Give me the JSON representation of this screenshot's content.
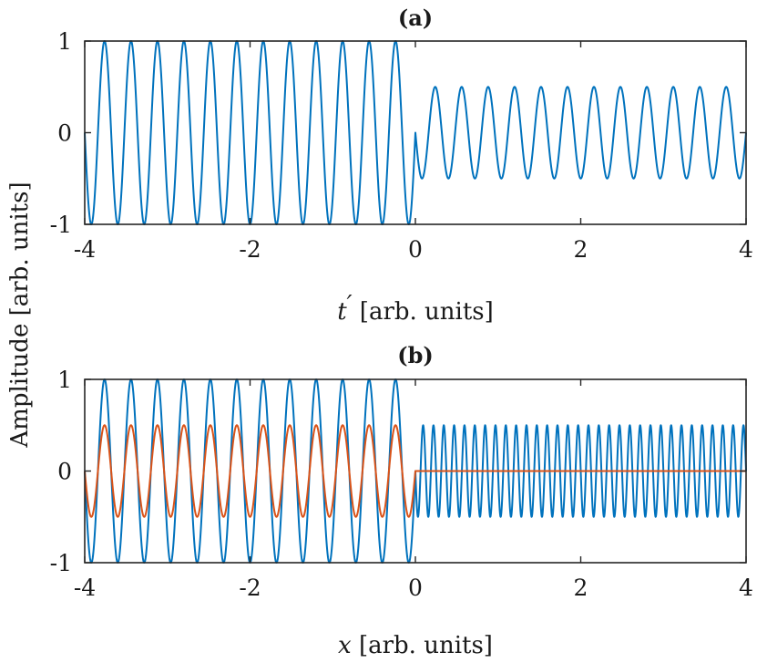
{
  "figure": {
    "ylabel": "Amplitude [arb. units]"
  },
  "chart_data": [
    {
      "type": "line",
      "title": "(a)",
      "xlabel_main": "t",
      "xlabel_prime": "′",
      "xlabel_rest": " [arb. units]",
      "xlim": [
        -4,
        4
      ],
      "ylim": [
        -1,
        1
      ],
      "xticks": [
        "-4",
        "-2",
        "0",
        "2",
        "4"
      ],
      "yticks": [
        "1",
        "0",
        "-1"
      ],
      "grid": false,
      "series": [
        {
          "color": "#0072BD",
          "segments": [
            {
              "x_range": [
                -4,
                0
              ],
              "amplitude": 1.0,
              "periods": 12.5
            },
            {
              "x_range": [
                0,
                4
              ],
              "amplitude": 0.5,
              "periods": 12.5
            }
          ]
        }
      ]
    },
    {
      "type": "line",
      "title": "(b)",
      "xlabel_main": "x",
      "xlabel_rest": " [arb. units]",
      "xlim": [
        -4,
        4
      ],
      "ylim": [
        -1,
        1
      ],
      "xticks": [
        "-4",
        "-2",
        "0",
        "2",
        "4"
      ],
      "yticks": [
        "1",
        "0",
        "-1"
      ],
      "grid": false,
      "series": [
        {
          "color": "#0072BD",
          "segments": [
            {
              "x_range": [
                -4,
                0
              ],
              "amplitude": 1.0,
              "periods": 12.5
            },
            {
              "x_range": [
                0,
                4
              ],
              "amplitude": 0.5,
              "periods": 32
            }
          ]
        },
        {
          "color": "#D95319",
          "segments": [
            {
              "x_range": [
                -4,
                0
              ],
              "amplitude": 0.5,
              "periods": 12.5
            },
            {
              "x_range": [
                0,
                4
              ],
              "amplitude": 0.0,
              "periods": 0
            }
          ]
        }
      ]
    }
  ]
}
